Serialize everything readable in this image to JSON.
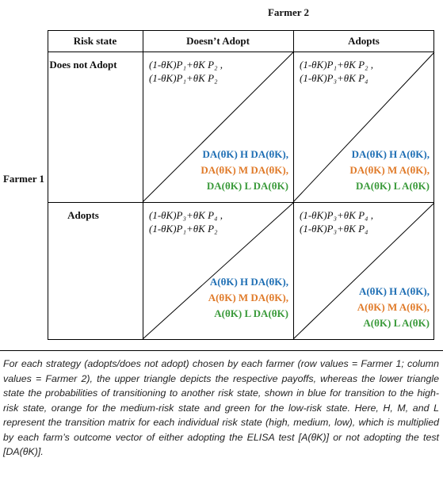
{
  "header": {
    "column_player": "Farmer 2",
    "row_player": "Farmer 1"
  },
  "table": {
    "headers": [
      "Risk state",
      "Doesn’t Adopt",
      "Adopts"
    ],
    "rows": [
      {
        "label": "Does not Adopt",
        "cells": [
          {
            "payoffs": [
              "(1-θK)P₁+θK P₂ ,",
              "(1-θK)P₁+θK P₂"
            ],
            "transitions": [
              "DA(θK) H DA(θK),",
              "DA(θK) M DA(θK),",
              "DA(θK) L DA(θK)"
            ]
          },
          {
            "payoffs": [
              "(1-θK)P₁+θK P₂ ,",
              "(1-θK)P₃+θK P₄"
            ],
            "transitions": [
              "DA(θK) H A(θK),",
              "DA(θK) M A(θK),",
              "DA(θK) L A(θK)"
            ]
          }
        ]
      },
      {
        "label": "Adopts",
        "cells": [
          {
            "payoffs": [
              "(1-θK)P₃+θK P₄ ,",
              "(1-θK)P₁+θK P₂"
            ],
            "transitions": [
              "A(θK) H DA(θK),",
              "A(θK) M DA(θK),",
              "A(θK) L DA(θK)"
            ]
          },
          {
            "payoffs": [
              "(1-θK)P₃+θK P₄ ,",
              "(1-θK)P₃+θK P₄"
            ],
            "transitions": [
              "A(θK) H A(θK),",
              "A(θK) M A(θK),",
              "A(θK) L A(θK)"
            ]
          }
        ]
      }
    ]
  },
  "caption": "For each strategy (adopts/does not adopt) chosen by each farmer (row values = Farmer 1; column values = Farmer 2), the upper triangle depicts the respective payoffs, whereas the lower triangle state the probabilities of transitioning to another risk state, shown in blue for transition to the high-risk state, orange for the medium-risk state and green for the low-risk state. Here, H, M, and L represent the transition matrix for each individual risk state (high, medium, low), which is multiplied by each farm’s outcome vector of either adopting the ELISA test [A(θK)] or not adopting the test [DA(θK)]."
}
